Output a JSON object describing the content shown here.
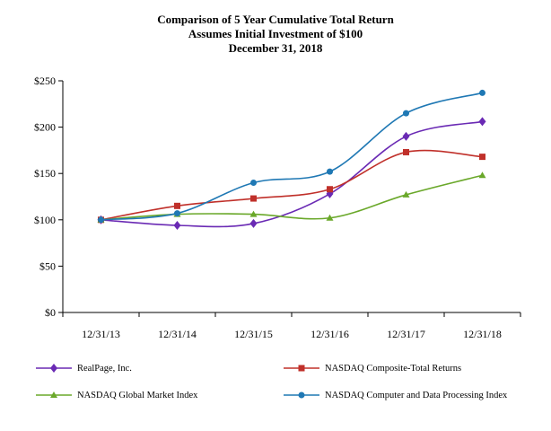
{
  "chart_data": {
    "type": "line",
    "title": "Comparison of 5 Year Cumulative Total Return",
    "subtitle": "Assumes Initial Investment of $100",
    "subtitle2": "December 31, 2018",
    "categories": [
      "12/31/13",
      "12/31/14",
      "12/31/15",
      "12/31/16",
      "12/31/17",
      "12/31/18"
    ],
    "ylim": [
      0,
      250
    ],
    "yticks": [
      0,
      50,
      100,
      150,
      200,
      250
    ],
    "ytick_labels": [
      "$0",
      "$50",
      "$100",
      "$150",
      "$200",
      "$250"
    ],
    "grid": false,
    "legend_position": "bottom",
    "series": [
      {
        "name": "RealPage, Inc.",
        "color": "#6a2ab4",
        "marker": "diamond",
        "values": [
          100,
          94,
          96,
          128,
          190,
          206
        ]
      },
      {
        "name": "NASDAQ Composite-Total Returns",
        "color": "#c0302a",
        "marker": "square",
        "values": [
          100,
          115,
          123,
          133,
          173,
          168
        ]
      },
      {
        "name": "NASDAQ Global Market Index",
        "color": "#6aa82a",
        "marker": "triangle",
        "values": [
          100,
          106,
          106,
          102,
          127,
          148
        ]
      },
      {
        "name": "NASDAQ Computer and Data Processing Index",
        "color": "#1f78b4",
        "marker": "circle",
        "values": [
          100,
          107,
          140,
          152,
          215,
          237
        ]
      }
    ]
  }
}
